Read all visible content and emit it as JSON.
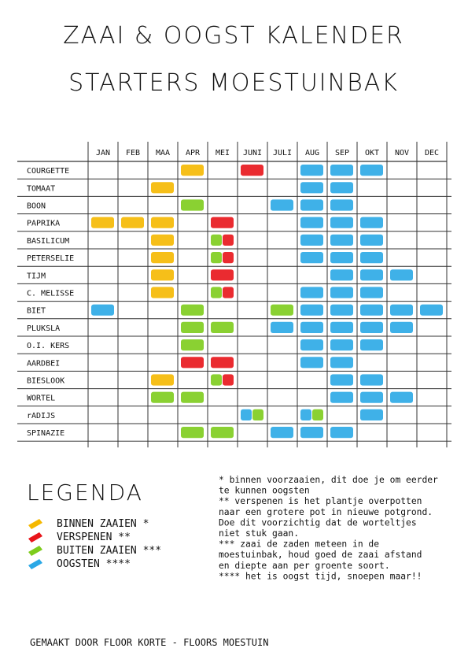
{
  "header": {
    "title": "ZAAI & OOGST KALENDER",
    "subtitle": "STARTERS MOESTUINBAK"
  },
  "table": {
    "months": [
      "JAN",
      "FEB",
      "MAA",
      "APR",
      "MEI",
      "JUNI",
      "JULI",
      "AUG",
      "SEP",
      "OKT",
      "NOV",
      "DEC"
    ],
    "rows": [
      {
        "name": "COURGETTE",
        "cells": [
          [],
          [],
          [],
          [
            0
          ],
          [],
          [
            1
          ],
          [],
          [
            3
          ],
          [
            3
          ],
          [
            3
          ],
          [],
          []
        ]
      },
      {
        "name": "TOMAAT",
        "cells": [
          [],
          [],
          [
            0
          ],
          [],
          [],
          [],
          [],
          [
            3
          ],
          [
            3
          ],
          [],
          [],
          []
        ]
      },
      {
        "name": "BOON",
        "cells": [
          [],
          [],
          [],
          [
            2
          ],
          [],
          [],
          [
            3
          ],
          [
            3
          ],
          [
            3
          ],
          [],
          [],
          []
        ]
      },
      {
        "name": "PAPRIKA",
        "cells": [
          [
            0
          ],
          [
            0
          ],
          [
            0
          ],
          [],
          [
            1
          ],
          [],
          [],
          [
            3
          ],
          [
            3
          ],
          [
            3
          ],
          [],
          []
        ]
      },
      {
        "name": "BASILICUM",
        "cells": [
          [],
          [],
          [
            0
          ],
          [],
          [
            2,
            1
          ],
          [],
          [],
          [
            3
          ],
          [
            3
          ],
          [
            3
          ],
          [],
          []
        ]
      },
      {
        "name": "PETERSELIE",
        "cells": [
          [],
          [],
          [
            0
          ],
          [],
          [
            2,
            1
          ],
          [],
          [],
          [
            3
          ],
          [
            3
          ],
          [
            3
          ],
          [],
          []
        ]
      },
      {
        "name": "TIJM",
        "cells": [
          [],
          [],
          [
            0
          ],
          [],
          [
            1
          ],
          [],
          [],
          [],
          [
            3
          ],
          [
            3
          ],
          [
            3
          ],
          []
        ]
      },
      {
        "name": "C. MELISSE",
        "cells": [
          [],
          [],
          [
            0
          ],
          [],
          [
            2,
            1
          ],
          [],
          [],
          [
            3
          ],
          [
            3
          ],
          [
            3
          ],
          [],
          []
        ]
      },
      {
        "name": "BIET",
        "cells": [
          [
            3
          ],
          [],
          [],
          [
            2
          ],
          [],
          [],
          [
            2
          ],
          [
            3
          ],
          [
            3
          ],
          [
            3
          ],
          [
            3
          ],
          [
            3
          ]
        ]
      },
      {
        "name": "PLUKSLA",
        "cells": [
          [],
          [],
          [],
          [
            2
          ],
          [
            2
          ],
          [],
          [
            3
          ],
          [
            3
          ],
          [
            3
          ],
          [
            3
          ],
          [
            3
          ],
          []
        ]
      },
      {
        "name": "O.I. KERS",
        "cells": [
          [],
          [],
          [],
          [
            2
          ],
          [],
          [],
          [],
          [
            3
          ],
          [
            3
          ],
          [
            3
          ],
          [],
          []
        ]
      },
      {
        "name": "AARDBEI",
        "cells": [
          [],
          [],
          [],
          [
            1
          ],
          [
            1
          ],
          [],
          [],
          [
            3
          ],
          [
            3
          ],
          [],
          [],
          []
        ]
      },
      {
        "name": "BIESLOOK",
        "cells": [
          [],
          [],
          [
            0
          ],
          [],
          [
            2,
            1
          ],
          [],
          [],
          [],
          [
            3
          ],
          [
            3
          ],
          [],
          []
        ]
      },
      {
        "name": "WORTEL",
        "cells": [
          [],
          [],
          [
            2
          ],
          [
            2
          ],
          [],
          [],
          [],
          [],
          [
            3
          ],
          [
            3
          ],
          [
            3
          ],
          []
        ]
      },
      {
        "name": "rADIJS",
        "cells": [
          [],
          [],
          [],
          [],
          [],
          [
            3,
            2
          ],
          [],
          [
            3,
            2
          ],
          [],
          [
            3
          ],
          [],
          []
        ]
      },
      {
        "name": "SPINAZIE",
        "cells": [
          [],
          [],
          [],
          [
            2
          ],
          [
            2
          ],
          [],
          [
            3
          ],
          [
            3
          ],
          [
            3
          ],
          [],
          [],
          []
        ]
      }
    ]
  },
  "legend": {
    "title": "LEGENDA",
    "items": [
      {
        "label": "BINNEN ZAAIEN *",
        "color": "#f5b800"
      },
      {
        "label": "VERSPENEN **",
        "color": "#e8141a"
      },
      {
        "label": "BUITEN ZAAIEN ***",
        "color": "#7dcc1c"
      },
      {
        "label": "OOGSTEN ****",
        "color": "#2aa8e6"
      }
    ]
  },
  "notes": [
    "* binnen voorzaaien, dit doe je om eerder",
    "te kunnen oogsten",
    "** verspenen is het plantje overpotten",
    "naar een grotere pot in nieuwe potgrond.",
    "Doe dit voorzichtig dat de worteltjes",
    "niet stuk gaan.",
    "*** zaai de zaden meteen in de",
    "moestuinbak, houd goed de zaai afstand",
    "en diepte aan per groente soort.",
    "**** het is oogst tijd, snoepen maar!!"
  ],
  "footer": "GEMAAKT DOOR FLOOR KORTE - FLOORS MOESTUIN"
}
